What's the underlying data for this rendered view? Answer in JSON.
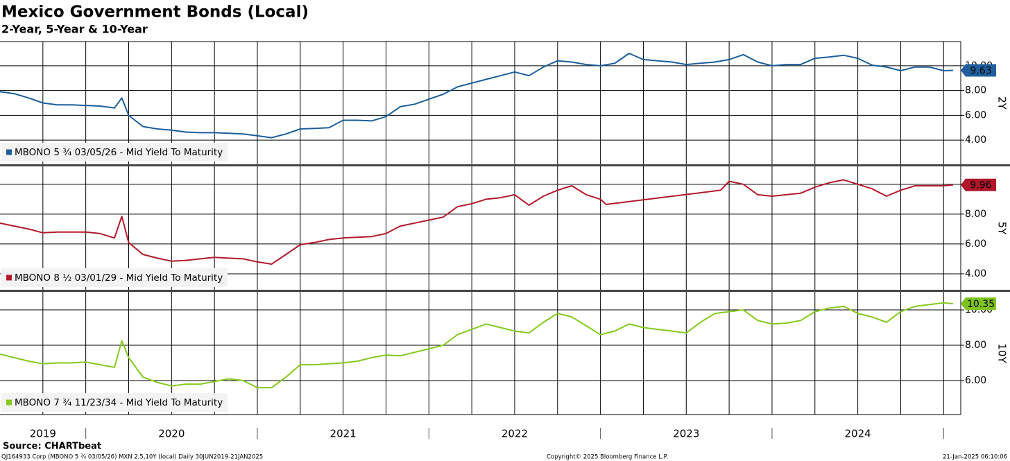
{
  "title": "Mexico Government Bonds (Local)",
  "subtitle": "2-Year, 5-Year & 10-Year",
  "source": "Source: CHARTbeat",
  "footer": [
    "QJ164933 Corp (MBONO 5 ¾ 03/05/26) MXN 2,5,10Y (local)  Daily 30JUN2019-21JAN2025",
    "Copyright© 2025 Bloomberg Finance L.P.",
    "21-Jan-2025 06:10:06"
  ],
  "chart_data": [
    {
      "type": "line",
      "ylabel": "2Y",
      "xlim": [
        2019.5,
        2025.1
      ],
      "ylim": [
        2.05,
        11.95
      ],
      "yticks": [
        {
          "value": 4,
          "label": "4.00"
        },
        {
          "value": 6,
          "label": "6.00"
        },
        {
          "value": 8,
          "label": "8.00"
        },
        {
          "value": 10,
          "label": "10.00"
        }
      ],
      "xgrid": [
        2019.75,
        2020,
        2020.25,
        2020.5,
        2020.75,
        2021,
        2021.25,
        2021.5,
        2021.75,
        2022,
        2022.25,
        2022.5,
        2022.75,
        2023,
        2023.25,
        2023.5,
        2023.75,
        2024,
        2024.25,
        2024.5,
        2024.75,
        2025
      ],
      "last_value": 9.63,
      "x": [
        2019.5,
        2019.583,
        2019.667,
        2019.75,
        2019.833,
        2019.917,
        2020.0,
        2020.083,
        2020.167,
        2020.21,
        2020.25,
        2020.333,
        2020.417,
        2020.5,
        2020.583,
        2020.667,
        2020.75,
        2020.833,
        2020.917,
        2021.0,
        2021.083,
        2021.167,
        2021.25,
        2021.333,
        2021.417,
        2021.5,
        2021.583,
        2021.667,
        2021.75,
        2021.833,
        2021.917,
        2022.0,
        2022.083,
        2022.167,
        2022.25,
        2022.333,
        2022.417,
        2022.5,
        2022.583,
        2022.667,
        2022.75,
        2022.833,
        2022.917,
        2023.0,
        2023.083,
        2023.167,
        2023.25,
        2023.333,
        2023.417,
        2023.5,
        2023.583,
        2023.667,
        2023.75,
        2023.833,
        2023.917,
        2024.0,
        2024.083,
        2024.167,
        2024.25,
        2024.333,
        2024.417,
        2024.5,
        2024.583,
        2024.667,
        2024.75,
        2024.833,
        2024.917,
        2025.0,
        2025.055
      ],
      "series": [
        {
          "name": "MBONO 5 ¾ 03/05/26 - Mid Yield To Maturity",
          "color": "#1b5e9b",
          "values": [
            7.9,
            7.75,
            7.4,
            7.0,
            6.85,
            6.85,
            6.8,
            6.75,
            6.6,
            7.4,
            6.0,
            5.1,
            4.9,
            4.8,
            4.65,
            4.6,
            4.6,
            4.55,
            4.5,
            4.35,
            4.2,
            4.5,
            4.9,
            4.95,
            5.0,
            5.6,
            5.6,
            5.55,
            5.9,
            6.7,
            6.9,
            7.3,
            7.7,
            8.3,
            8.6,
            8.9,
            9.2,
            9.5,
            9.2,
            9.9,
            10.4,
            10.3,
            10.1,
            10.0,
            10.2,
            11.0,
            10.5,
            10.4,
            10.3,
            10.1,
            10.2,
            10.3,
            10.5,
            10.9,
            10.3,
            10.0,
            10.1,
            10.1,
            10.6,
            10.7,
            10.85,
            10.6,
            10.05,
            9.9,
            9.6,
            9.9,
            9.9,
            9.6,
            9.63
          ]
        }
      ],
      "tag_color": "#1f5f9e",
      "tag_text_color": "#ffffff"
    },
    {
      "type": "line",
      "ylabel": "5Y",
      "xlim": [
        2019.5,
        2025.1
      ],
      "ylim": [
        2.93,
        11.2
      ],
      "yticks": [
        {
          "value": 4,
          "label": "4.00"
        },
        {
          "value": 6,
          "label": "6.00"
        },
        {
          "value": 8,
          "label": "8.00"
        },
        {
          "value": 10,
          "label": "10.00"
        }
      ],
      "last_value": 9.96,
      "x": [
        2019.5,
        2019.583,
        2019.667,
        2019.75,
        2019.833,
        2019.917,
        2020.0,
        2020.083,
        2020.167,
        2020.21,
        2020.25,
        2020.333,
        2020.417,
        2020.5,
        2020.583,
        2020.667,
        2020.75,
        2020.833,
        2020.917,
        2021.0,
        2021.083,
        2021.167,
        2021.25,
        2021.333,
        2021.417,
        2021.5,
        2021.583,
        2021.667,
        2021.75,
        2021.833,
        2021.917,
        2022.0,
        2022.083,
        2022.167,
        2022.25,
        2022.333,
        2022.417,
        2022.5,
        2022.583,
        2022.667,
        2022.75,
        2022.833,
        2022.917,
        2023.0,
        2023.033,
        2023.7,
        2023.75,
        2023.833,
        2023.917,
        2024.0,
        2024.083,
        2024.167,
        2024.25,
        2024.333,
        2024.417,
        2024.5,
        2024.583,
        2024.667,
        2024.75,
        2024.833,
        2024.917,
        2025.0,
        2025.055
      ],
      "series": [
        {
          "name": "MBONO 8 ½ 03/01/29 - Mid Yield To Maturity",
          "color": "#b3192b",
          "values": [
            7.4,
            7.2,
            7.0,
            6.75,
            6.8,
            6.8,
            6.8,
            6.7,
            6.4,
            7.85,
            6.1,
            5.3,
            5.05,
            4.85,
            4.9,
            5.0,
            5.1,
            5.05,
            5.0,
            4.8,
            4.65,
            5.3,
            5.95,
            6.1,
            6.3,
            6.4,
            6.45,
            6.5,
            6.7,
            7.2,
            7.4,
            7.6,
            7.8,
            8.5,
            8.7,
            9.0,
            9.1,
            9.3,
            8.6,
            9.2,
            9.6,
            9.9,
            9.3,
            9.0,
            8.65,
            9.6,
            10.2,
            10.0,
            9.3,
            9.2,
            9.3,
            9.4,
            9.8,
            10.1,
            10.3,
            10.0,
            9.7,
            9.2,
            9.6,
            9.9,
            9.9,
            9.9,
            9.96
          ]
        }
      ],
      "tag_color": "#b0182a",
      "tag_text_color": "#ffffff"
    },
    {
      "type": "line",
      "ylabel": "10Y",
      "xlim": [
        2019.5,
        2025.1
      ],
      "ylim": [
        4.08,
        11.02
      ],
      "yticks": [
        {
          "value": 6,
          "label": "6.00"
        },
        {
          "value": 8,
          "label": "8.00"
        },
        {
          "value": 10,
          "label": "10.00"
        }
      ],
      "xticks": [
        {
          "value": 2019.75,
          "label": "2019"
        },
        {
          "value": 2020.5,
          "label": "2020"
        },
        {
          "value": 2021.5,
          "label": "2021"
        },
        {
          "value": 2022.5,
          "label": "2022"
        },
        {
          "value": 2023.5,
          "label": "2023"
        },
        {
          "value": 2024.5,
          "label": "2024"
        }
      ],
      "last_value": 10.35,
      "x": [
        2019.5,
        2019.583,
        2019.667,
        2019.75,
        2019.833,
        2019.917,
        2020.0,
        2020.083,
        2020.167,
        2020.21,
        2020.25,
        2020.333,
        2020.417,
        2020.5,
        2020.583,
        2020.667,
        2020.75,
        2020.833,
        2020.917,
        2021.0,
        2021.083,
        2021.167,
        2021.25,
        2021.333,
        2021.417,
        2021.5,
        2021.583,
        2021.667,
        2021.75,
        2021.833,
        2021.917,
        2022.0,
        2022.083,
        2022.167,
        2022.25,
        2022.333,
        2022.417,
        2022.5,
        2022.583,
        2022.667,
        2022.75,
        2022.833,
        2022.917,
        2023.0,
        2023.083,
        2023.167,
        2023.25,
        2023.333,
        2023.417,
        2023.5,
        2023.583,
        2023.667,
        2023.75,
        2023.833,
        2023.917,
        2024.0,
        2024.083,
        2024.167,
        2024.25,
        2024.333,
        2024.417,
        2024.5,
        2024.583,
        2024.667,
        2024.75,
        2024.833,
        2024.917,
        2025.0,
        2025.055
      ],
      "series": [
        {
          "name": "MBONO 7 ¾ 11/23/34 - Mid Yield To Maturity",
          "color": "#84c91c",
          "values": [
            7.5,
            7.3,
            7.1,
            6.95,
            7.0,
            7.0,
            7.05,
            6.9,
            6.75,
            8.25,
            7.3,
            6.2,
            5.9,
            5.7,
            5.8,
            5.8,
            5.95,
            6.1,
            6.0,
            5.6,
            5.6,
            6.2,
            6.9,
            6.9,
            6.95,
            7.0,
            7.1,
            7.3,
            7.45,
            7.4,
            7.6,
            7.8,
            8.0,
            8.6,
            8.9,
            9.2,
            9.0,
            8.8,
            8.7,
            9.3,
            9.8,
            9.6,
            9.1,
            8.6,
            8.8,
            9.2,
            9.0,
            8.9,
            8.8,
            8.7,
            9.3,
            9.8,
            9.9,
            10.0,
            9.4,
            9.2,
            9.25,
            9.4,
            9.9,
            10.1,
            10.2,
            9.8,
            9.6,
            9.3,
            9.9,
            10.2,
            10.3,
            10.4,
            10.35
          ]
        }
      ],
      "tag_color": "#7ec321",
      "tag_text_color": "#000000"
    }
  ]
}
